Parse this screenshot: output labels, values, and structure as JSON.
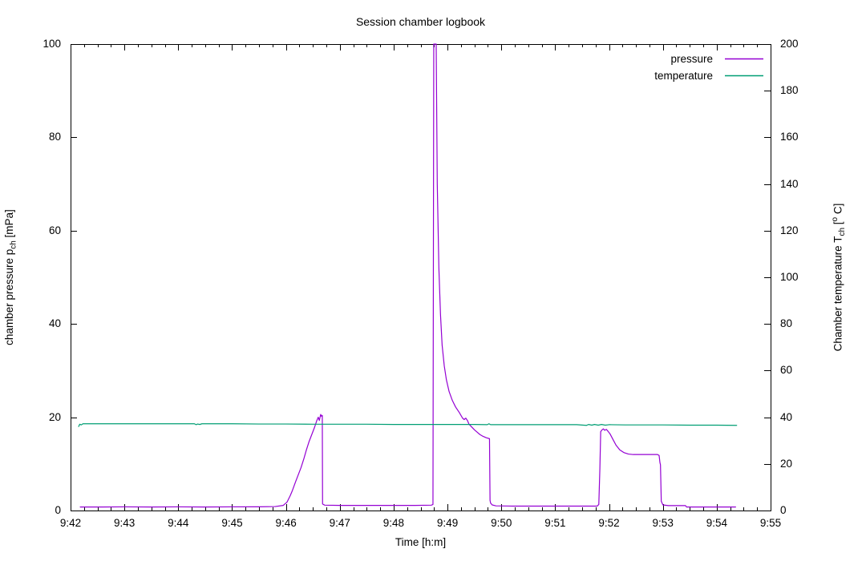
{
  "chart_data": {
    "type": "line",
    "title": "Session chamber logbook",
    "background": "#ffffff",
    "x_axis": {
      "label": "Time [h:m]",
      "tick_labels": [
        "9:42",
        "9:43",
        "9:44",
        "9:45",
        "9:46",
        "9:47",
        "9:48",
        "9:49",
        "9:50",
        "9:51",
        "9:52",
        "9:53",
        "9:54",
        "9:55"
      ],
      "range_minutes_after_start": [
        0,
        13
      ],
      "minor_tick_interval_minutes": 0.25,
      "grid": false
    },
    "y_left": {
      "label_prefix": "chamber pressure p",
      "label_sub": "ch",
      "label_suffix": " [mPa]",
      "range": [
        0,
        100
      ],
      "ticks": [
        0,
        20,
        40,
        60,
        80,
        100
      ]
    },
    "y_right": {
      "label_prefix": "Chamber temperature T",
      "label_sub": "ch",
      "label_mid": " [",
      "label_sup": "o",
      "label_suffix": " C]",
      "range": [
        0,
        200
      ],
      "ticks": [
        0,
        20,
        40,
        60,
        80,
        100,
        120,
        140,
        160,
        180,
        200
      ]
    },
    "legend": {
      "position": "top-right-inside",
      "entries": [
        {
          "label": "pressure",
          "color": "#9400d3"
        },
        {
          "label": "temperature",
          "color": "#009e73"
        }
      ]
    },
    "series": [
      {
        "name": "pressure",
        "axis": "left",
        "color": "#9400d3",
        "points": [
          [
            0.18,
            0.75
          ],
          [
            0.5,
            0.75
          ],
          [
            1.0,
            0.78
          ],
          [
            1.5,
            0.75
          ],
          [
            2.0,
            0.78
          ],
          [
            2.5,
            0.75
          ],
          [
            3.0,
            0.78
          ],
          [
            3.5,
            0.8
          ],
          [
            3.8,
            0.85
          ],
          [
            3.95,
            1.1
          ],
          [
            4.02,
            1.8
          ],
          [
            4.08,
            3.2
          ],
          [
            4.12,
            4.3
          ],
          [
            4.18,
            6.2
          ],
          [
            4.22,
            7.4
          ],
          [
            4.28,
            9.2
          ],
          [
            4.33,
            11.0
          ],
          [
            4.38,
            13.0
          ],
          [
            4.43,
            14.8
          ],
          [
            4.48,
            16.3
          ],
          [
            4.53,
            17.8
          ],
          [
            4.57,
            19.2
          ],
          [
            4.6,
            20.0
          ],
          [
            4.62,
            19.3
          ],
          [
            4.645,
            20.6
          ],
          [
            4.66,
            20.2
          ],
          [
            4.675,
            20.4
          ],
          [
            4.68,
            1.4
          ],
          [
            4.72,
            1.15
          ],
          [
            5.0,
            1.1
          ],
          [
            5.5,
            1.1
          ],
          [
            6.0,
            1.1
          ],
          [
            6.4,
            1.1
          ],
          [
            6.7,
            1.15
          ],
          [
            6.73,
            1.3
          ],
          [
            6.745,
            100
          ],
          [
            6.79,
            100
          ],
          [
            6.81,
            70
          ],
          [
            6.84,
            52
          ],
          [
            6.87,
            42
          ],
          [
            6.9,
            35.5
          ],
          [
            6.94,
            31
          ],
          [
            6.98,
            28
          ],
          [
            7.03,
            25.5
          ],
          [
            7.09,
            23.6
          ],
          [
            7.15,
            22.2
          ],
          [
            7.22,
            21.0
          ],
          [
            7.28,
            19.8
          ],
          [
            7.31,
            19.5
          ],
          [
            7.34,
            19.8
          ],
          [
            7.37,
            19.3
          ],
          [
            7.4,
            18.5
          ],
          [
            7.45,
            17.9
          ],
          [
            7.5,
            17.3
          ],
          [
            7.55,
            16.8
          ],
          [
            7.6,
            16.3
          ],
          [
            7.66,
            15.9
          ],
          [
            7.72,
            15.6
          ],
          [
            7.78,
            15.4
          ],
          [
            7.79,
            2.2
          ],
          [
            7.8,
            1.6
          ],
          [
            7.83,
            1.2
          ],
          [
            7.9,
            1.0
          ],
          [
            8.2,
            0.95
          ],
          [
            8.6,
            0.95
          ],
          [
            9.0,
            0.95
          ],
          [
            9.4,
            0.95
          ],
          [
            9.78,
            0.95
          ],
          [
            9.81,
            1.3
          ],
          [
            9.83,
            9.0
          ],
          [
            9.845,
            16.9
          ],
          [
            9.87,
            17.3
          ],
          [
            9.895,
            17.5
          ],
          [
            9.92,
            17.2
          ],
          [
            9.95,
            17.4
          ],
          [
            9.98,
            17.0
          ],
          [
            10.02,
            16.4
          ],
          [
            10.07,
            15.3
          ],
          [
            10.13,
            14.0
          ],
          [
            10.2,
            13.0
          ],
          [
            10.28,
            12.4
          ],
          [
            10.36,
            12.1
          ],
          [
            10.45,
            12.0
          ],
          [
            10.6,
            12.0
          ],
          [
            10.75,
            12.0
          ],
          [
            10.9,
            12.0
          ],
          [
            10.93,
            11.8
          ],
          [
            10.945,
            10.3
          ],
          [
            10.955,
            9.8
          ],
          [
            10.97,
            2.0
          ],
          [
            11.0,
            1.2
          ],
          [
            11.1,
            1.05
          ],
          [
            11.25,
            1.05
          ],
          [
            11.42,
            1.05
          ],
          [
            11.44,
            0.75
          ],
          [
            11.7,
            0.75
          ],
          [
            12.0,
            0.75
          ],
          [
            12.35,
            0.75
          ]
        ]
      },
      {
        "name": "temperature",
        "axis": "right",
        "color": "#009e73",
        "points": [
          [
            0.15,
            36.0
          ],
          [
            0.17,
            37.0
          ],
          [
            0.2,
            36.7
          ],
          [
            0.23,
            37.2
          ],
          [
            0.5,
            37.2
          ],
          [
            1.0,
            37.2
          ],
          [
            1.5,
            37.2
          ],
          [
            2.0,
            37.2
          ],
          [
            2.3,
            37.2
          ],
          [
            2.33,
            36.8
          ],
          [
            2.36,
            37.1
          ],
          [
            2.4,
            36.9
          ],
          [
            2.44,
            37.2
          ],
          [
            3.0,
            37.2
          ],
          [
            3.5,
            37.1
          ],
          [
            4.0,
            37.1
          ],
          [
            4.5,
            37.0
          ],
          [
            5.0,
            37.0
          ],
          [
            5.5,
            37.0
          ],
          [
            6.0,
            36.9
          ],
          [
            6.5,
            36.9
          ],
          [
            7.0,
            36.9
          ],
          [
            7.5,
            36.9
          ],
          [
            7.74,
            36.8
          ],
          [
            7.77,
            37.2
          ],
          [
            7.8,
            36.8
          ],
          [
            8.2,
            36.8
          ],
          [
            8.6,
            36.8
          ],
          [
            9.0,
            36.8
          ],
          [
            9.4,
            36.8
          ],
          [
            9.58,
            36.5
          ],
          [
            9.62,
            36.9
          ],
          [
            9.68,
            36.6
          ],
          [
            9.73,
            36.9
          ],
          [
            9.8,
            36.6
          ],
          [
            9.86,
            36.9
          ],
          [
            9.93,
            36.6
          ],
          [
            10.0,
            36.8
          ],
          [
            10.3,
            36.7
          ],
          [
            10.7,
            36.7
          ],
          [
            11.0,
            36.7
          ],
          [
            11.5,
            36.6
          ],
          [
            12.0,
            36.6
          ],
          [
            12.37,
            36.5
          ]
        ]
      }
    ]
  }
}
